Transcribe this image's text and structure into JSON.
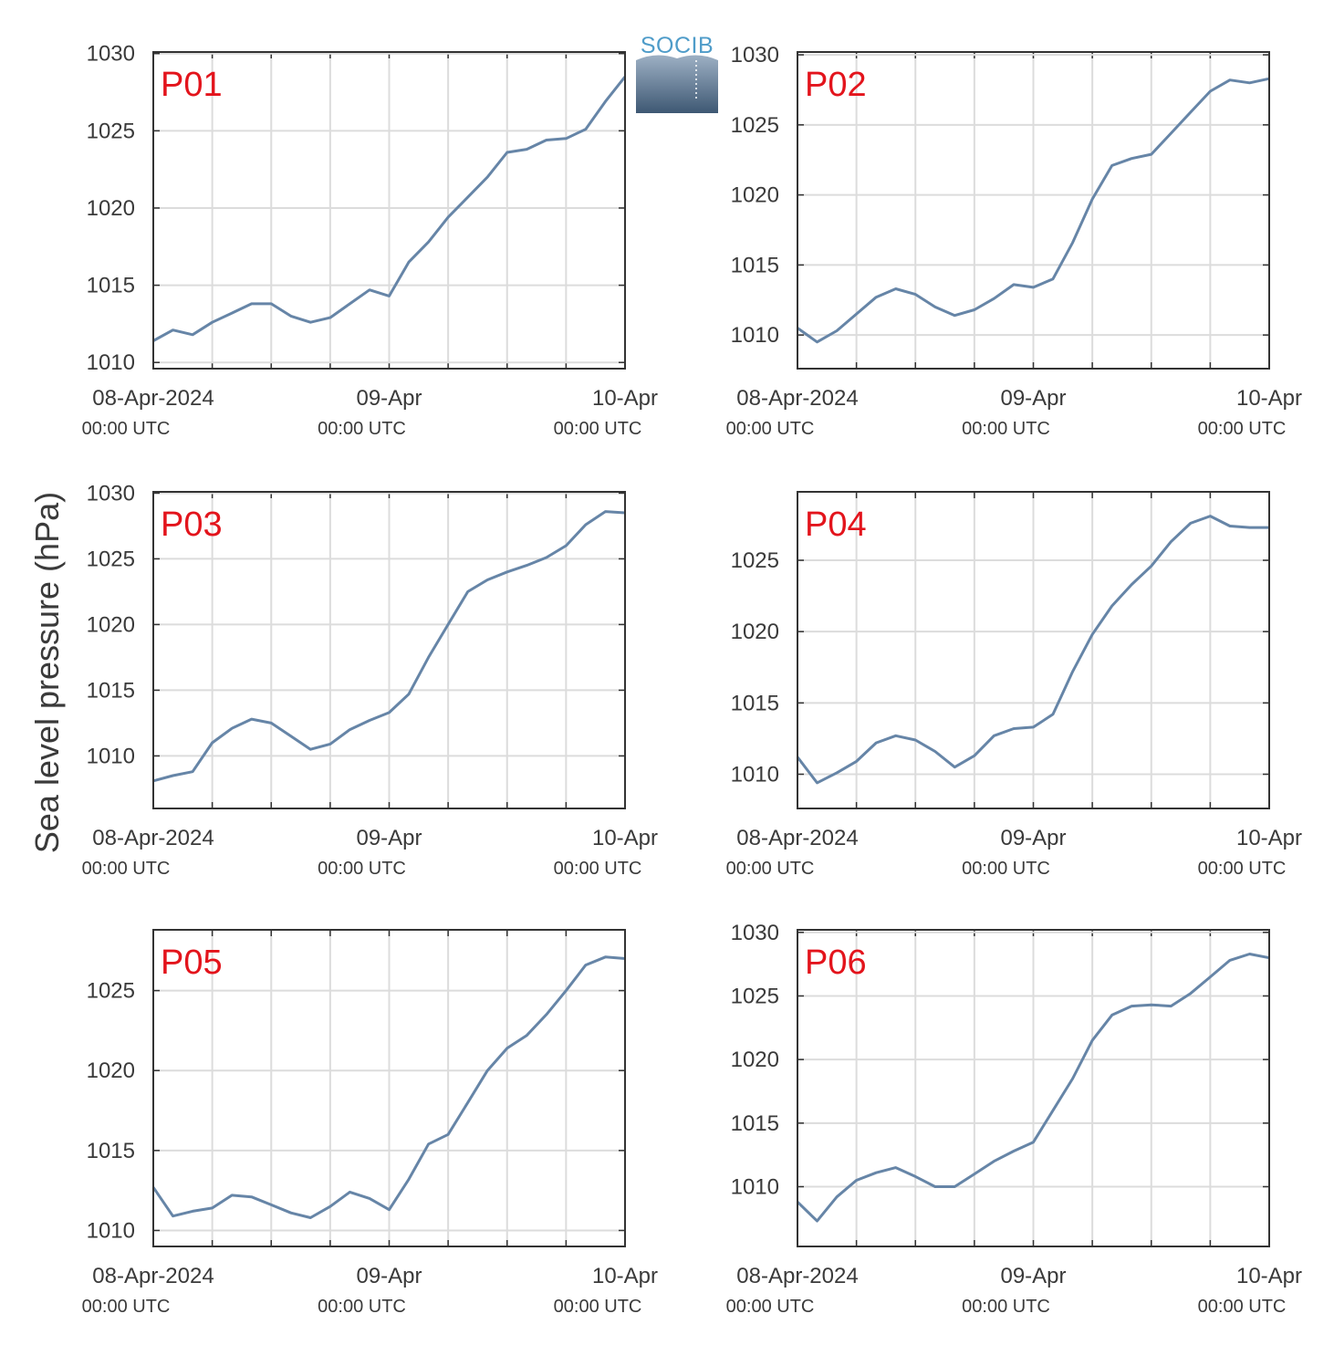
{
  "ylabel": "Sea level pressure (hPa)",
  "logo": {
    "text": "SOCIB",
    "color": "#4f9cc9"
  },
  "colors": {
    "line": "#6685a7",
    "panel_label": "#e3141c",
    "grid": "#dcdcdc",
    "axis": "#333333",
    "text": "#3a3a3a"
  },
  "x_ticks": [
    {
      "date": "2024-04-08T00:00",
      "label": "08-Apr-2024",
      "sublabel": "00:00 UTC"
    },
    {
      "date": "2024-04-09T00:00",
      "label": "09-Apr",
      "sublabel": "00:00 UTC"
    },
    {
      "date": "2024-04-10T00:00",
      "label": "10-Apr",
      "sublabel": "00:00 UTC"
    }
  ],
  "chart_data": [
    {
      "type": "line",
      "label": "P01",
      "xlim": [
        "2024-04-08T00:00",
        "2024-04-10T00:00"
      ],
      "ylim": [
        1009.6,
        1030.1
      ],
      "yticks": [
        1010,
        1015,
        1020,
        1025,
        1030
      ],
      "grid": true,
      "x": [
        "2024-04-08T00:00",
        "2024-04-08T02:00",
        "2024-04-08T04:00",
        "2024-04-08T06:00",
        "2024-04-08T08:00",
        "2024-04-08T10:00",
        "2024-04-08T12:00",
        "2024-04-08T14:00",
        "2024-04-08T16:00",
        "2024-04-08T18:00",
        "2024-04-08T20:00",
        "2024-04-08T22:00",
        "2024-04-09T00:00",
        "2024-04-09T02:00",
        "2024-04-09T04:00",
        "2024-04-09T06:00",
        "2024-04-09T08:00",
        "2024-04-09T10:00",
        "2024-04-09T12:00",
        "2024-04-09T14:00",
        "2024-04-09T16:00",
        "2024-04-09T18:00",
        "2024-04-09T20:00",
        "2024-04-09T22:00",
        "2024-04-10T00:00"
      ],
      "y": [
        1011.4,
        1012.1,
        1011.8,
        1012.6,
        1013.2,
        1013.8,
        1013.8,
        1013.0,
        1012.6,
        1012.9,
        1013.8,
        1014.7,
        1014.3,
        1016.5,
        1017.8,
        1019.4,
        1020.7,
        1022.0,
        1023.6,
        1023.8,
        1024.4,
        1024.5,
        1025.1,
        1026.9,
        1028.5
      ]
    },
    {
      "type": "line",
      "label": "P02",
      "xlim": [
        "2024-04-08T00:00",
        "2024-04-10T00:00"
      ],
      "ylim": [
        1007.6,
        1030.2
      ],
      "yticks": [
        1010,
        1015,
        1020,
        1025,
        1030
      ],
      "grid": true,
      "x": [
        "2024-04-08T00:00",
        "2024-04-08T02:00",
        "2024-04-08T04:00",
        "2024-04-08T06:00",
        "2024-04-08T08:00",
        "2024-04-08T10:00",
        "2024-04-08T12:00",
        "2024-04-08T14:00",
        "2024-04-08T16:00",
        "2024-04-08T18:00",
        "2024-04-08T20:00",
        "2024-04-08T22:00",
        "2024-04-09T00:00",
        "2024-04-09T02:00",
        "2024-04-09T04:00",
        "2024-04-09T06:00",
        "2024-04-09T08:00",
        "2024-04-09T10:00",
        "2024-04-09T12:00",
        "2024-04-09T14:00",
        "2024-04-09T16:00",
        "2024-04-09T18:00",
        "2024-04-09T20:00",
        "2024-04-09T22:00",
        "2024-04-10T00:00"
      ],
      "y": [
        1010.5,
        1009.5,
        1010.3,
        1011.5,
        1012.7,
        1013.3,
        1012.9,
        1012.0,
        1011.4,
        1011.8,
        1012.6,
        1013.6,
        1013.4,
        1014.0,
        1016.6,
        1019.7,
        1022.1,
        1022.6,
        1022.9,
        1024.4,
        1025.9,
        1027.4,
        1028.2,
        1028.0,
        1028.3
      ]
    },
    {
      "type": "line",
      "label": "P03",
      "xlim": [
        "2024-04-08T00:00",
        "2024-04-10T00:00"
      ],
      "ylim": [
        1006.0,
        1030.1
      ],
      "yticks": [
        1010,
        1015,
        1020,
        1025,
        1030
      ],
      "grid": true,
      "x": [
        "2024-04-08T00:00",
        "2024-04-08T02:00",
        "2024-04-08T04:00",
        "2024-04-08T06:00",
        "2024-04-08T08:00",
        "2024-04-08T10:00",
        "2024-04-08T12:00",
        "2024-04-08T14:00",
        "2024-04-08T16:00",
        "2024-04-08T18:00",
        "2024-04-08T20:00",
        "2024-04-08T22:00",
        "2024-04-09T00:00",
        "2024-04-09T02:00",
        "2024-04-09T04:00",
        "2024-04-09T06:00",
        "2024-04-09T08:00",
        "2024-04-09T10:00",
        "2024-04-09T12:00",
        "2024-04-09T14:00",
        "2024-04-09T16:00",
        "2024-04-09T18:00",
        "2024-04-09T20:00",
        "2024-04-09T22:00",
        "2024-04-10T00:00"
      ],
      "y": [
        1008.1,
        1008.5,
        1008.8,
        1011.0,
        1012.1,
        1012.8,
        1012.5,
        1011.5,
        1010.5,
        1010.9,
        1012.0,
        1012.7,
        1013.3,
        1014.7,
        1017.5,
        1020.0,
        1022.5,
        1023.4,
        1024.0,
        1024.5,
        1025.1,
        1026.0,
        1027.6,
        1028.6,
        1028.5
      ]
    },
    {
      "type": "line",
      "label": "P04",
      "xlim": [
        "2024-04-08T00:00",
        "2024-04-10T00:00"
      ],
      "ylim": [
        1007.6,
        1029.8
      ],
      "yticks": [
        1010,
        1015,
        1020,
        1025
      ],
      "grid": true,
      "x": [
        "2024-04-08T00:00",
        "2024-04-08T02:00",
        "2024-04-08T04:00",
        "2024-04-08T06:00",
        "2024-04-08T08:00",
        "2024-04-08T10:00",
        "2024-04-08T12:00",
        "2024-04-08T14:00",
        "2024-04-08T16:00",
        "2024-04-08T18:00",
        "2024-04-08T20:00",
        "2024-04-08T22:00",
        "2024-04-09T00:00",
        "2024-04-09T02:00",
        "2024-04-09T04:00",
        "2024-04-09T06:00",
        "2024-04-09T08:00",
        "2024-04-09T10:00",
        "2024-04-09T12:00",
        "2024-04-09T14:00",
        "2024-04-09T16:00",
        "2024-04-09T18:00",
        "2024-04-09T20:00",
        "2024-04-09T22:00",
        "2024-04-10T00:00"
      ],
      "y": [
        1011.2,
        1009.4,
        1010.1,
        1010.9,
        1012.2,
        1012.7,
        1012.4,
        1011.6,
        1010.5,
        1011.3,
        1012.7,
        1013.2,
        1013.3,
        1014.2,
        1017.2,
        1019.8,
        1021.8,
        1023.3,
        1024.6,
        1026.3,
        1027.6,
        1028.1,
        1027.4,
        1027.3,
        1027.3
      ]
    },
    {
      "type": "line",
      "label": "P05",
      "xlim": [
        "2024-04-08T00:00",
        "2024-04-10T00:00"
      ],
      "ylim": [
        1009.0,
        1028.8
      ],
      "yticks": [
        1010,
        1015,
        1020,
        1025
      ],
      "grid": true,
      "x": [
        "2024-04-08T00:00",
        "2024-04-08T02:00",
        "2024-04-08T04:00",
        "2024-04-08T06:00",
        "2024-04-08T08:00",
        "2024-04-08T10:00",
        "2024-04-08T12:00",
        "2024-04-08T14:00",
        "2024-04-08T16:00",
        "2024-04-08T18:00",
        "2024-04-08T20:00",
        "2024-04-08T22:00",
        "2024-04-09T00:00",
        "2024-04-09T02:00",
        "2024-04-09T04:00",
        "2024-04-09T06:00",
        "2024-04-09T08:00",
        "2024-04-09T10:00",
        "2024-04-09T12:00",
        "2024-04-09T14:00",
        "2024-04-09T16:00",
        "2024-04-09T18:00",
        "2024-04-09T20:00",
        "2024-04-09T22:00",
        "2024-04-10T00:00"
      ],
      "y": [
        1012.7,
        1010.9,
        1011.2,
        1011.4,
        1012.2,
        1012.1,
        1011.6,
        1011.1,
        1010.8,
        1011.5,
        1012.4,
        1012.0,
        1011.3,
        1013.2,
        1015.4,
        1016.0,
        1018.0,
        1020.0,
        1021.4,
        1022.2,
        1023.5,
        1025.0,
        1026.6,
        1027.1,
        1027.0
      ]
    },
    {
      "type": "line",
      "label": "P06",
      "xlim": [
        "2024-04-08T00:00",
        "2024-04-10T00:00"
      ],
      "ylim": [
        1005.3,
        1030.2
      ],
      "yticks": [
        1010,
        1015,
        1020,
        1025,
        1030
      ],
      "grid": true,
      "x": [
        "2024-04-08T00:00",
        "2024-04-08T02:00",
        "2024-04-08T04:00",
        "2024-04-08T06:00",
        "2024-04-08T08:00",
        "2024-04-08T10:00",
        "2024-04-08T12:00",
        "2024-04-08T14:00",
        "2024-04-08T16:00",
        "2024-04-08T18:00",
        "2024-04-08T20:00",
        "2024-04-08T22:00",
        "2024-04-09T00:00",
        "2024-04-09T02:00",
        "2024-04-09T04:00",
        "2024-04-09T06:00",
        "2024-04-09T08:00",
        "2024-04-09T10:00",
        "2024-04-09T12:00",
        "2024-04-09T14:00",
        "2024-04-09T16:00",
        "2024-04-09T18:00",
        "2024-04-09T20:00",
        "2024-04-09T22:00",
        "2024-04-10T00:00"
      ],
      "y": [
        1008.8,
        1007.3,
        1009.2,
        1010.5,
        1011.1,
        1011.5,
        1010.8,
        1010.0,
        1010.0,
        1011.0,
        1012.0,
        1012.8,
        1013.5,
        1016.0,
        1018.5,
        1021.5,
        1023.5,
        1024.2,
        1024.3,
        1024.2,
        1025.2,
        1026.5,
        1027.8,
        1028.3,
        1028.0
      ]
    }
  ]
}
